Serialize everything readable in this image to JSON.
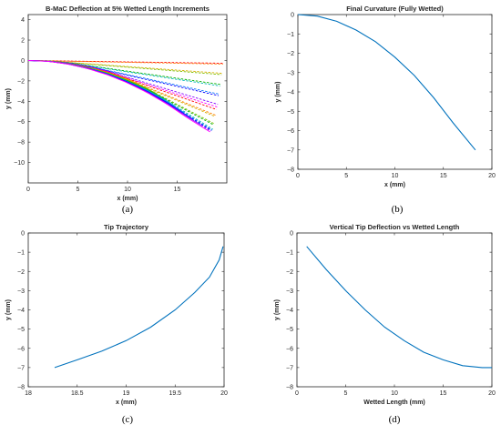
{
  "chart_data": [
    {
      "type": "line",
      "title": "B-MaC Deflection at 5% Wetted Length Increments",
      "xlabel": "x (mm)",
      "ylabel": "y (mm)",
      "panel_label": "(a)",
      "xlim": [
        0,
        20
      ],
      "ylim": [
        -12,
        4.5
      ],
      "xticks": [
        0,
        5,
        10,
        15
      ],
      "yticks": [
        4,
        2,
        0,
        -2,
        -4,
        -6,
        -8,
        -10
      ],
      "grid": false,
      "series_colors": [
        "#ff0000",
        "#ff7f00",
        "#d4b000",
        "#7fbf00",
        "#00b000",
        "#00b8b8",
        "#0070ff",
        "#0000ff",
        "#8000ff",
        "#ff00ff"
      ],
      "wetted_fractions": [
        0.05,
        0.1,
        0.15,
        0.2,
        0.25,
        0.3,
        0.35,
        0.4,
        0.45,
        0.5,
        0.55,
        0.6,
        0.65,
        0.7,
        0.75,
        0.8,
        0.85,
        0.9,
        0.95,
        1.0
      ],
      "final_curve": {
        "x": [
          0,
          2,
          4,
          6,
          8,
          10,
          12,
          14,
          16,
          18.3
        ],
        "y": [
          0,
          -0.08,
          -0.35,
          -0.8,
          -1.4,
          -2.2,
          -3.15,
          -4.3,
          -5.6,
          -7.0
        ]
      }
    },
    {
      "type": "line",
      "title": "Final Curvature (Fully Wetted)",
      "xlabel": "x (mm)",
      "ylabel": "y (mm)",
      "panel_label": "(b)",
      "xlim": [
        0,
        20
      ],
      "ylim": [
        -8,
        0
      ],
      "xticks": [
        0,
        5,
        10,
        15,
        20
      ],
      "yticks": [
        0,
        -1,
        -2,
        -3,
        -4,
        -5,
        -6,
        -7,
        -8
      ],
      "color": "#0072bd",
      "x": [
        0,
        2,
        4,
        6,
        8,
        10,
        12,
        14,
        16,
        18.3
      ],
      "y": [
        0,
        -0.08,
        -0.35,
        -0.8,
        -1.4,
        -2.2,
        -3.15,
        -4.3,
        -5.6,
        -7.0
      ]
    },
    {
      "type": "line",
      "title": "Tip Trajectory",
      "xlabel": "x (mm)",
      "ylabel": "y (mm)",
      "panel_label": "(c)",
      "xlim": [
        18,
        20
      ],
      "ylim": [
        -8,
        0
      ],
      "xticks": [
        18,
        18.5,
        19,
        19.5,
        20
      ],
      "yticks": [
        0,
        -1,
        -2,
        -3,
        -4,
        -5,
        -6,
        -7,
        -8
      ],
      "color": "#0072bd",
      "x": [
        18.27,
        18.5,
        18.75,
        19.0,
        19.25,
        19.5,
        19.7,
        19.85,
        19.95,
        19.99
      ],
      "y": [
        -7.0,
        -6.6,
        -6.15,
        -5.6,
        -4.9,
        -4.0,
        -3.1,
        -2.3,
        -1.4,
        -0.7
      ]
    },
    {
      "type": "line",
      "title": "Vertical Tip Deflection vs Wetted Length",
      "xlabel": "Wetted Length (mm)",
      "ylabel": "y (mm)",
      "panel_label": "(d)",
      "xlim": [
        0,
        20
      ],
      "ylim": [
        -8,
        0
      ],
      "xticks": [
        0,
        5,
        10,
        15,
        20
      ],
      "yticks": [
        0,
        -1,
        -2,
        -3,
        -4,
        -5,
        -6,
        -7,
        -8
      ],
      "color": "#0072bd",
      "x": [
        1,
        3,
        5,
        7,
        9,
        11,
        13,
        15,
        17,
        19,
        20
      ],
      "y": [
        -0.7,
        -1.9,
        -3.0,
        -4.0,
        -4.9,
        -5.6,
        -6.2,
        -6.6,
        -6.9,
        -7.0,
        -7.0
      ]
    }
  ]
}
